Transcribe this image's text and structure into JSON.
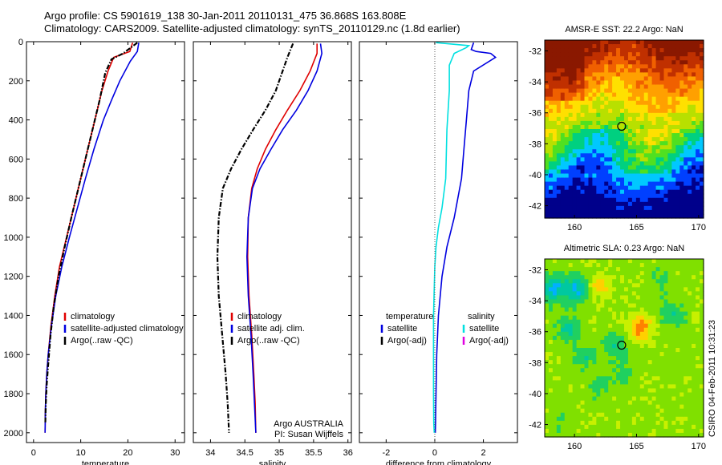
{
  "header": {
    "line1": "Argo profile: CS 5901619_138 30-Jan-2011 20110131_475 36.868S 163.808E",
    "line2": "Climatology: CARS2009. Satellite-adjusted climatology: synTS_20110129.nc (1.8d earlier)"
  },
  "side_note": "CSIRO 04-Feb-2011 10:31:23",
  "chart_data": [
    {
      "type": "line",
      "id": "temperature",
      "xlabel": "temperature",
      "ylabel": "",
      "xlim": [
        -1.5,
        32
      ],
      "ylim": [
        2050,
        0
      ],
      "yreversed": true,
      "xticks": [
        0,
        10,
        20,
        30
      ],
      "yticks": [
        0,
        200,
        400,
        600,
        800,
        1000,
        1200,
        1400,
        1600,
        1800,
        2000
      ],
      "legend": [
        "climatology",
        "satellite-adjusted climatology",
        "Argo(..raw -QC)"
      ],
      "legend_placement": "lower-right",
      "series": [
        {
          "name": "climatology",
          "color": "#e00000",
          "dash": "solid",
          "x": [
            21,
            20.4,
            17,
            15.8,
            14.5,
            13,
            11.5,
            10,
            8.5,
            7,
            5.5,
            4.5,
            3.7,
            3.1,
            2.8,
            2.6,
            2.5,
            2.45
          ],
          "y": [
            5,
            50,
            80,
            150,
            250,
            400,
            550,
            700,
            850,
            1000,
            1150,
            1300,
            1450,
            1600,
            1700,
            1800,
            1900,
            2000
          ]
        },
        {
          "name": "satellite-adjusted climatology",
          "color": "#0000e0",
          "dash": "solid",
          "x": [
            22.3,
            22,
            20.5,
            18.3,
            16.5,
            14.8,
            12.8,
            11,
            9.3,
            7.6,
            6,
            4.7,
            3.8,
            3.1,
            2.8,
            2.6,
            2.5,
            2.45
          ],
          "y": [
            5,
            50,
            100,
            200,
            300,
            400,
            550,
            700,
            850,
            1000,
            1150,
            1300,
            1450,
            1600,
            1700,
            1800,
            1900,
            2000
          ]
        },
        {
          "name": "Argo(..raw -QC)",
          "color": "#000000",
          "dash": "dashdot",
          "x": [
            22,
            19,
            16.5,
            15.2,
            14,
            12.5,
            11,
            9.5,
            8,
            6.6,
            5.3,
            4.3,
            3.6,
            3.1,
            2.8,
            2.6,
            2.5
          ],
          "y": [
            5,
            60,
            90,
            160,
            300,
            450,
            600,
            750,
            900,
            1050,
            1200,
            1350,
            1500,
            1650,
            1750,
            1850,
            1950
          ]
        }
      ]
    },
    {
      "type": "line",
      "id": "salinity",
      "xlabel": "salinity",
      "ylabel": "",
      "xlim": [
        33.75,
        36.05
      ],
      "ylim": [
        2050,
        0
      ],
      "yreversed": true,
      "xticks": [
        34,
        34.5,
        35,
        35.5,
        36
      ],
      "legend": [
        "climatology",
        "satellite adj. clim.",
        "Argo(..raw -QC)"
      ],
      "legend_placement": "lower-right",
      "annotation": [
        "Argo AUSTRALIA",
        "PI: Susan Wijffels"
      ],
      "series": [
        {
          "name": "climatology",
          "color": "#e00000",
          "dash": "solid",
          "x": [
            35.55,
            35.55,
            35.45,
            35.3,
            35.12,
            34.95,
            34.8,
            34.68,
            34.6,
            34.55,
            34.54,
            34.56,
            34.6,
            34.63,
            34.65,
            34.66
          ],
          "y": [
            10,
            60,
            150,
            250,
            350,
            450,
            550,
            650,
            750,
            900,
            1100,
            1300,
            1500,
            1700,
            1850,
            2000
          ]
        },
        {
          "name": "satellite adj. clim.",
          "color": "#0000e0",
          "dash": "solid",
          "x": [
            35.6,
            35.62,
            35.55,
            35.42,
            35.25,
            35.05,
            34.88,
            34.72,
            34.61,
            34.55,
            34.53,
            34.55,
            34.59,
            34.62,
            34.64,
            34.66
          ],
          "y": [
            10,
            60,
            150,
            250,
            350,
            450,
            550,
            650,
            750,
            900,
            1100,
            1300,
            1500,
            1700,
            1850,
            2000
          ]
        },
        {
          "name": "Argo(..raw -QC)",
          "color": "#000000",
          "dash": "dashdot",
          "x": [
            35.2,
            35.12,
            35.05,
            34.95,
            34.8,
            34.62,
            34.45,
            34.3,
            34.18,
            34.12,
            34.1,
            34.12,
            34.17,
            34.22,
            34.25,
            34.27
          ],
          "y": [
            10,
            80,
            150,
            250,
            350,
            450,
            550,
            650,
            750,
            900,
            1100,
            1300,
            1500,
            1700,
            1850,
            2000
          ]
        }
      ]
    },
    {
      "type": "line",
      "id": "difference",
      "xlabel": "difference from climatology",
      "ylabel": "",
      "xlim": [
        -3.1,
        3.4
      ],
      "ylim": [
        2050,
        0
      ],
      "yreversed": true,
      "xticks": [
        -2,
        0,
        2
      ],
      "legend_groups": [
        {
          "title": "temperature",
          "items": [
            "satellite",
            "Argo(-adj)"
          ],
          "colors": [
            "#0000e0",
            "#000000"
          ]
        },
        {
          "title": "salinity",
          "items": [
            "satellite",
            "Argo(-adj)"
          ],
          "colors": [
            "#00e0e0",
            "#e000e0"
          ]
        }
      ],
      "legend_placement": "lower-center",
      "series": [
        {
          "name": "temperature satellite",
          "color": "#0000e0",
          "dash": "solid",
          "x": [
            1.6,
            1.5,
            1.7,
            2.3,
            2.5,
            1.6,
            1.4,
            1.3,
            1.2,
            1.1,
            0.8,
            0.5,
            0.3,
            0.15,
            0.08,
            0.05,
            0.03,
            0.02
          ],
          "y": [
            5,
            40,
            50,
            60,
            80,
            150,
            250,
            400,
            550,
            700,
            900,
            1050,
            1200,
            1400,
            1600,
            1800,
            1950,
            2000
          ]
        },
        {
          "name": "salinity satellite",
          "color": "#00e0e0",
          "dash": "solid",
          "x": [
            0.05,
            1.4,
            1.3,
            0.8,
            0.6,
            0.6,
            0.5,
            0.45,
            0.3,
            0.15,
            0.05,
            0.0,
            -0.05,
            -0.05,
            -0.05,
            -0.04,
            -0.02
          ],
          "y": [
            5,
            20,
            30,
            60,
            120,
            250,
            450,
            700,
            850,
            950,
            1050,
            1150,
            1400,
            1600,
            1800,
            1950,
            2000
          ]
        },
        {
          "name": "zero",
          "color": "#555555",
          "dash": "dotted",
          "x": [
            0,
            0
          ],
          "y": [
            0,
            2050
          ]
        }
      ]
    },
    {
      "type": "heatmap",
      "id": "sst_map",
      "title": "AMSR-E SST: 22.2 Argo: NaN",
      "xlim": [
        157.6,
        170.4
      ],
      "ylim": [
        -42.8,
        -31.3
      ],
      "xticks": [
        160,
        165,
        170
      ],
      "yticks": [
        -32,
        -34,
        -36,
        -38,
        -40,
        -42
      ],
      "marker": {
        "lon": 163.8,
        "lat": -36.87
      },
      "colors": [
        "#00008b",
        "#0040ff",
        "#00c8ff",
        "#00d080",
        "#50e020",
        "#b8e000",
        "#ffe000",
        "#ffa000",
        "#f06000",
        "#c03000",
        "#8a1800"
      ]
    },
    {
      "type": "heatmap",
      "id": "sla_map",
      "title": "Altimetric SLA: 0.23 Argo: NaN",
      "xlim": [
        157.6,
        170.4
      ],
      "ylim": [
        -42.8,
        -31.3
      ],
      "xticks": [
        160,
        165,
        170
      ],
      "yticks": [
        -32,
        -34,
        -36,
        -38,
        -40,
        -42
      ],
      "marker": {
        "lon": 163.8,
        "lat": -36.87
      },
      "colors": [
        "#0000c0",
        "#0060ff",
        "#00b0ff",
        "#00c8a0",
        "#20d060",
        "#80e000",
        "#c8f000",
        "#ffd000",
        "#ff8000",
        "#e02000",
        "#a00000"
      ]
    }
  ]
}
